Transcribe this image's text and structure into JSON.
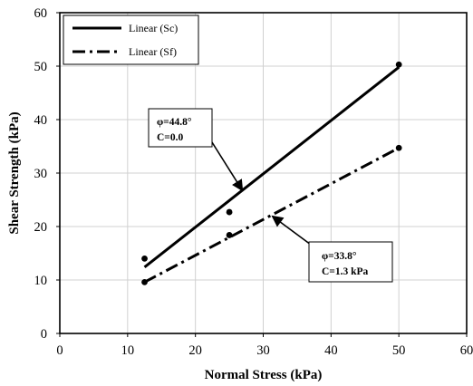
{
  "chart_data": {
    "type": "scatter",
    "xlabel": "Normal Stress (kPa)",
    "ylabel": "Shear Strength (kPa)",
    "xlim": [
      0,
      60
    ],
    "ylim": [
      0,
      60
    ],
    "x_ticks": [
      0,
      10,
      20,
      30,
      40,
      50,
      60
    ],
    "y_ticks": [
      0,
      10,
      20,
      30,
      40,
      50,
      60
    ],
    "grid": true,
    "legend_position": "top-left",
    "series": [
      {
        "name": "Linear (Sc)",
        "line_style": "solid",
        "points": [
          [
            12.5,
            14.0
          ],
          [
            25.0,
            22.7
          ],
          [
            50.0,
            50.3
          ]
        ],
        "fit_line": [
          [
            12.5,
            12.4
          ],
          [
            50.0,
            49.8
          ]
        ]
      },
      {
        "name": "Linear (Sf)",
        "line_style": "dash-dot",
        "points": [
          [
            12.5,
            9.6
          ],
          [
            25.0,
            18.4
          ],
          [
            50.0,
            34.7
          ]
        ],
        "fit_line": [
          [
            12.5,
            9.6
          ],
          [
            50.0,
            34.7
          ]
        ]
      }
    ],
    "annotations": [
      {
        "line1": "φ=44.8°",
        "line2": "C=0.0",
        "target_series": "Linear (Sc)"
      },
      {
        "line1": "φ=33.8°",
        "line2": "C=1.3 kPa",
        "target_series": "Linear (Sf)"
      }
    ]
  }
}
